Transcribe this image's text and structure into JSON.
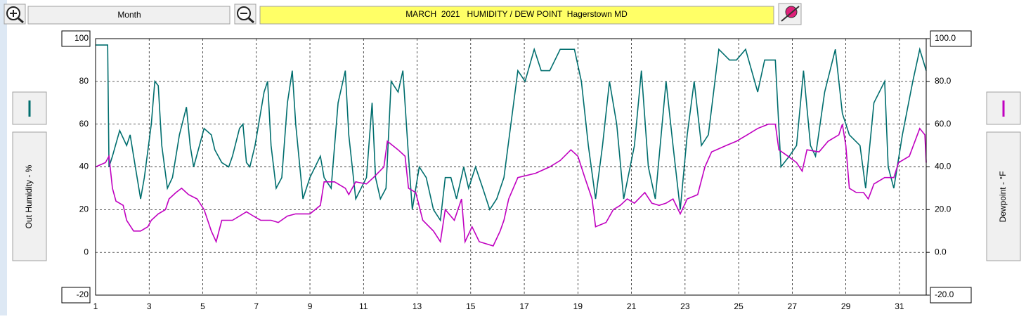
{
  "chart_data": {
    "type": "line",
    "title": "MARCH  2021   HUMIDITY / DEW POINT  Hagerstown MD",
    "period": "Month",
    "ylabel": "Out Humidity - %",
    "y2label": "Dewpoint - °F",
    "xlim": [
      1,
      32
    ],
    "xticks": [
      1,
      3,
      5,
      7,
      9,
      11,
      13,
      15,
      17,
      19,
      21,
      23,
      25,
      27,
      29,
      31
    ],
    "ylim": [
      -20,
      100
    ],
    "yticks": [
      100,
      80,
      60,
      40,
      20,
      0,
      -20
    ],
    "y2lim": [
      -20,
      100
    ],
    "y2ticks": [
      {
        "value": 100,
        "label": "100.0"
      },
      {
        "value": 80,
        "label": "80.0"
      },
      {
        "value": 60,
        "label": "60.0"
      },
      {
        "value": 40,
        "label": "40.0"
      },
      {
        "value": 20,
        "label": "20.0"
      },
      {
        "value": 0,
        "label": "0.0"
      },
      {
        "value": -20,
        "label": "-20.0"
      }
    ],
    "grid": true,
    "series": [
      {
        "color": "#006e6e",
        "axis": "y",
        "x": [
          1.0,
          1.45,
          1.5,
          1.63,
          1.9,
          2.16,
          2.29,
          2.42,
          2.68,
          2.82,
          3.08,
          3.21,
          3.34,
          3.47,
          3.68,
          3.87,
          4.13,
          4.39,
          4.53,
          4.66,
          4.92,
          5.05,
          5.32,
          5.45,
          5.71,
          5.97,
          6.11,
          6.37,
          6.5,
          6.63,
          6.76,
          6.95,
          7.29,
          7.42,
          7.55,
          7.74,
          7.95,
          8.16,
          8.34,
          8.47,
          8.74,
          9.0,
          9.39,
          9.53,
          9.79,
          10.05,
          10.32,
          10.45,
          10.71,
          11.11,
          11.32,
          11.45,
          11.63,
          11.84,
          12.03,
          12.29,
          12.47,
          12.68,
          12.82,
          13.08,
          13.34,
          13.61,
          13.87,
          14.05,
          14.26,
          14.47,
          14.74,
          14.92,
          15.18,
          15.45,
          15.71,
          15.97,
          16.24,
          16.5,
          16.76,
          17.03,
          17.37,
          17.63,
          17.95,
          18.34,
          18.87,
          19.13,
          19.39,
          19.66,
          19.92,
          20.18,
          20.45,
          20.71,
          21.11,
          21.37,
          21.63,
          21.89,
          22.29,
          22.55,
          22.82,
          23.08,
          23.34,
          23.61,
          23.87,
          24.26,
          24.66,
          24.92,
          25.26,
          25.71,
          25.97,
          26.37,
          26.58,
          26.89,
          27.16,
          27.42,
          27.68,
          27.87,
          28.21,
          28.61,
          28.87,
          29.13,
          29.53,
          29.74,
          30.05,
          30.45,
          30.58,
          30.79,
          31.11,
          31.5,
          31.76,
          32.0
        ],
        "values": [
          97,
          97,
          40,
          45,
          57,
          50,
          55,
          45,
          25,
          35,
          60,
          80,
          78,
          50,
          30,
          35,
          55,
          68,
          50,
          40,
          52,
          58,
          55,
          48,
          42,
          40,
          45,
          58,
          60,
          42,
          40,
          50,
          75,
          80,
          50,
          30,
          35,
          70,
          85,
          60,
          25,
          35,
          45,
          35,
          30,
          70,
          85,
          55,
          25,
          35,
          70,
          35,
          25,
          30,
          80,
          75,
          85,
          45,
          20,
          40,
          35,
          20,
          15,
          35,
          35,
          25,
          40,
          30,
          40,
          30,
          20,
          25,
          35,
          60,
          85,
          80,
          95,
          85,
          85,
          95,
          95,
          80,
          50,
          25,
          50,
          80,
          60,
          25,
          50,
          85,
          40,
          25,
          80,
          50,
          20,
          55,
          80,
          50,
          55,
          95,
          90,
          90,
          95,
          75,
          90,
          90,
          40,
          45,
          50,
          85,
          50,
          45,
          75,
          95,
          65,
          55,
          50,
          30,
          70,
          80,
          40,
          30,
          55,
          80,
          95,
          85
        ]
      },
      {
        "color": "#c000c0",
        "axis": "y2",
        "x": [
          1.0,
          1.37,
          1.5,
          1.63,
          1.76,
          2.03,
          2.16,
          2.42,
          2.68,
          2.95,
          3.08,
          3.34,
          3.61,
          3.74,
          4.0,
          4.21,
          4.47,
          4.79,
          5.05,
          5.32,
          5.5,
          5.71,
          6.11,
          6.37,
          6.63,
          6.89,
          7.16,
          7.55,
          7.82,
          8.16,
          8.47,
          9.0,
          9.39,
          9.53,
          9.92,
          10.32,
          10.45,
          10.71,
          11.11,
          11.37,
          11.76,
          11.89,
          12.29,
          12.55,
          12.68,
          12.95,
          13.21,
          13.61,
          13.87,
          14.05,
          14.39,
          14.66,
          14.79,
          15.05,
          15.32,
          15.84,
          16.1,
          16.24,
          16.42,
          16.76,
          17.42,
          17.95,
          18.34,
          18.74,
          19.0,
          19.26,
          19.53,
          19.66,
          20.05,
          20.32,
          20.58,
          20.84,
          21.11,
          21.5,
          21.76,
          22.03,
          22.29,
          22.55,
          22.82,
          23.08,
          23.47,
          23.74,
          23.99,
          24.53,
          24.92,
          25.32,
          25.71,
          26.11,
          26.37,
          26.5,
          26.84,
          27.16,
          27.37,
          27.55,
          28.0,
          28.34,
          28.74,
          28.87,
          29.0,
          29.13,
          29.39,
          29.66,
          29.84,
          30.05,
          30.45,
          30.79,
          30.97,
          31.37,
          31.76,
          31.95,
          32.0
        ],
        "values": [
          40,
          42,
          45,
          30,
          24,
          22,
          15,
          10,
          10,
          12,
          15,
          18,
          20,
          25,
          28,
          30,
          27,
          25,
          20,
          10,
          5,
          15,
          15,
          17,
          19,
          17,
          15,
          15,
          14,
          17,
          18,
          18,
          22,
          33,
          33,
          30,
          27,
          33,
          32,
          35,
          40,
          52,
          48,
          45,
          30,
          28,
          15,
          10,
          5,
          20,
          15,
          25,
          5,
          12,
          5,
          3,
          10,
          15,
          25,
          35,
          37,
          40,
          43,
          48,
          45,
          35,
          25,
          12,
          14,
          20,
          22,
          25,
          23,
          28,
          23,
          22,
          23,
          25,
          18,
          25,
          27,
          40,
          47,
          50,
          52,
          55,
          58,
          60,
          60,
          48,
          45,
          42,
          38,
          48,
          47,
          52,
          55,
          60,
          50,
          30,
          28,
          28,
          25,
          32,
          35,
          35,
          42,
          45,
          58,
          55,
          42
        ]
      }
    ]
  }
}
